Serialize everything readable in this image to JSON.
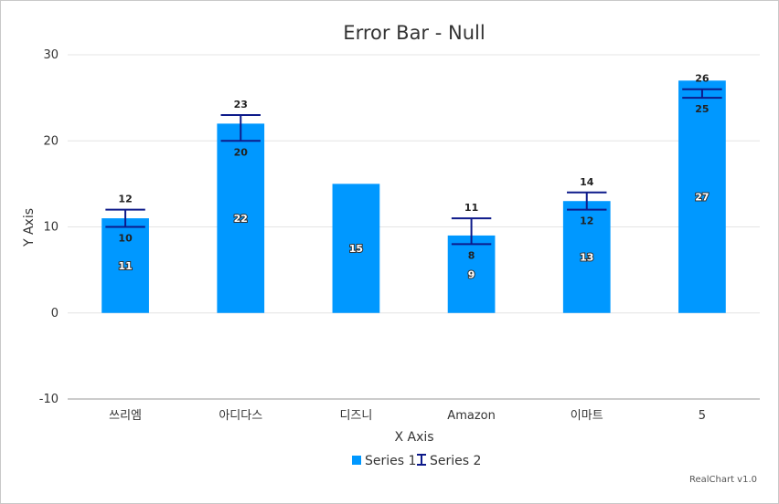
{
  "chart_data": {
    "type": "bar",
    "title": "Error Bar - Null",
    "xlabel": "X Axis",
    "ylabel": "Y Axis",
    "ylim": [
      -10,
      30
    ],
    "yticks": [
      -10,
      0,
      10,
      20,
      30
    ],
    "grid": true,
    "categories": [
      "쓰리엠",
      "아디다스",
      "디즈니",
      "Amazon",
      "이마트",
      "5"
    ],
    "series": [
      {
        "name": "Series 1",
        "type": "bar",
        "values": [
          11,
          22,
          15,
          9,
          13,
          27
        ]
      },
      {
        "name": "Series 2",
        "type": "errorbar",
        "low": [
          10,
          20,
          null,
          8,
          12,
          25
        ],
        "high": [
          12,
          23,
          null,
          11,
          14,
          26
        ]
      }
    ],
    "legend": "bottom",
    "credits": "RealChart v1.0",
    "colors": {
      "bar": "#0098ff",
      "error": "#0d1a8a",
      "grid": "#e4e4e4",
      "axis": "#999999"
    }
  }
}
